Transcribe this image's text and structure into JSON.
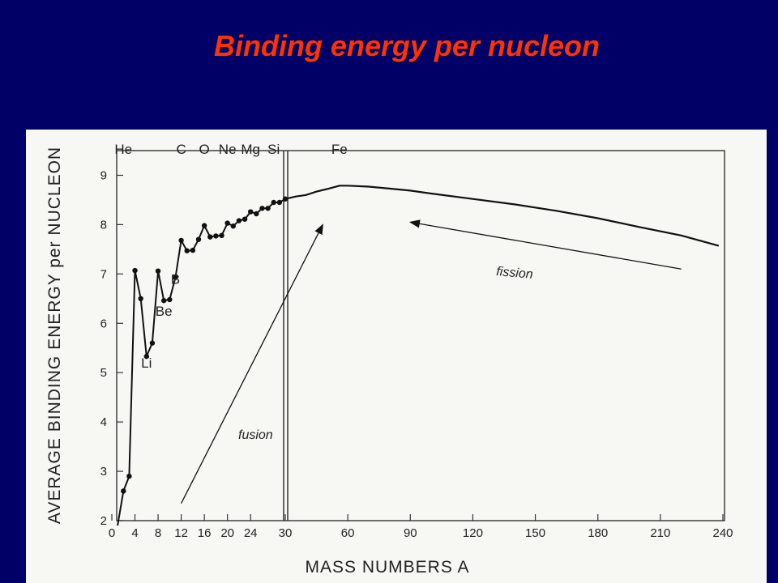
{
  "slide": {
    "title": "Binding energy per nucleon"
  },
  "chart_data": {
    "type": "line",
    "title": "Binding energy per nucleon",
    "xlabel": "MASS NUMBERS A",
    "ylabel": "AVERAGE BINDING ENERGY per NUCLEON",
    "ylim": [
      2,
      9.5
    ],
    "y_ticks": [
      "2",
      "3",
      "4",
      "5",
      "6",
      "7",
      "8",
      "9"
    ],
    "x_axis": {
      "break_at": 30,
      "left_segment": {
        "range": [
          0,
          30
        ],
        "ticks": [
          "0",
          "4",
          "8",
          "12",
          "16",
          "20",
          "24"
        ]
      },
      "right_segment": {
        "range": [
          30,
          240
        ],
        "ticks": [
          "30",
          "60",
          "90",
          "120",
          "150",
          "180",
          "210",
          "240"
        ]
      }
    },
    "element_labels": [
      {
        "text": "He",
        "x": 2
      },
      {
        "text": "C",
        "x": 12
      },
      {
        "text": "O",
        "x": 16
      },
      {
        "text": "Ne",
        "x": 20
      },
      {
        "text": "Mg",
        "x": 24
      },
      {
        "text": "Si",
        "x": 28
      },
      {
        "text": "Fe",
        "x": 56
      }
    ],
    "point_labels": [
      {
        "text": "Li",
        "x": 6,
        "y": 5.1
      },
      {
        "text": "Be",
        "x": 9,
        "y": 6.15
      },
      {
        "text": "B",
        "x": 11,
        "y": 6.8
      }
    ],
    "series": [
      {
        "points": [
          [
            1,
            1.9
          ],
          [
            2,
            2.6
          ],
          [
            3,
            2.9
          ],
          [
            4,
            7.07
          ],
          [
            5,
            6.5
          ],
          [
            6,
            5.33
          ],
          [
            7,
            5.6
          ],
          [
            8,
            7.06
          ],
          [
            9,
            6.46
          ],
          [
            10,
            6.48
          ],
          [
            11,
            6.93
          ],
          [
            12,
            7.68
          ],
          [
            13,
            7.47
          ],
          [
            14,
            7.48
          ],
          [
            15,
            7.7
          ],
          [
            16,
            7.98
          ],
          [
            17,
            7.75
          ],
          [
            18,
            7.77
          ],
          [
            19,
            7.78
          ],
          [
            20,
            8.03
          ],
          [
            21,
            7.97
          ],
          [
            22,
            8.08
          ],
          [
            23,
            8.11
          ],
          [
            24,
            8.26
          ],
          [
            25,
            8.22
          ],
          [
            26,
            8.33
          ],
          [
            27,
            8.33
          ],
          [
            28,
            8.45
          ],
          [
            29,
            8.45
          ],
          [
            30,
            8.52
          ]
        ]
      },
      {
        "points": [
          [
            30,
            8.52
          ],
          [
            35,
            8.57
          ],
          [
            40,
            8.6
          ],
          [
            45,
            8.67
          ],
          [
            50,
            8.72
          ],
          [
            56,
            8.79
          ],
          [
            60,
            8.79
          ],
          [
            70,
            8.77
          ],
          [
            80,
            8.73
          ],
          [
            90,
            8.69
          ],
          [
            100,
            8.63
          ],
          [
            120,
            8.52
          ],
          [
            140,
            8.41
          ],
          [
            160,
            8.28
          ],
          [
            180,
            8.13
          ],
          [
            200,
            7.95
          ],
          [
            220,
            7.78
          ],
          [
            238,
            7.57
          ]
        ]
      }
    ],
    "annotations": [
      {
        "text": "fusion",
        "arrow_from": [
          12,
          2.35
        ],
        "arrow_to": [
          48,
          8.0
        ]
      },
      {
        "text": "fission",
        "arrow_from": [
          220,
          7.1
        ],
        "arrow_to": [
          90,
          8.05
        ]
      }
    ],
    "grid": false
  }
}
